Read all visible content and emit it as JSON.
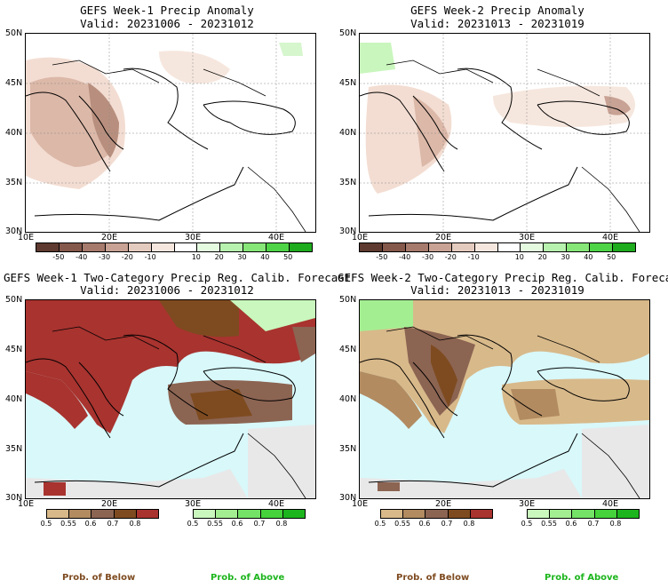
{
  "panels": {
    "p1": {
      "title": "GEFS Week-1 Precip Anomaly",
      "valid": "Valid: 20231006 - 20231012"
    },
    "p2": {
      "title": "GEFS Week-2 Precip Anomaly",
      "valid": "Valid: 20231013 - 20231019"
    },
    "p3": {
      "title": "GEFS Week-1 Two-Category Precip Reg. Calib. Forecast",
      "valid": "Valid: 20231006 - 20231012"
    },
    "p4": {
      "title": "GEFS Week-2 Two-Category Precip Reg. Calib. Forecast",
      "valid": "Valid: 20231013 - 20231019"
    }
  },
  "axes": {
    "lat_labels": [
      "50N",
      "45N",
      "40N",
      "35N",
      "30N"
    ],
    "lon_labels": [
      "10E",
      "20E",
      "30E",
      "40E"
    ]
  },
  "anomaly_colorbar": {
    "labels": [
      "-50",
      "-40",
      "-30",
      "-20",
      "-10",
      "10",
      "20",
      "30",
      "40",
      "50"
    ],
    "colors": [
      "#5e3a30",
      "#85584c",
      "#a67a6c",
      "#c8a294",
      "#e4cbbf",
      "#f6e7de",
      "#ffffff",
      "#e4fbe0",
      "#b7f3ae",
      "#86e678",
      "#4fd447",
      "#1eab1e"
    ]
  },
  "below_colorbar": {
    "labels": [
      "0.5",
      "0.55",
      "0.6",
      "0.7",
      "0.8"
    ],
    "colors": [
      "#d8b98a",
      "#b28b61",
      "#8c6452",
      "#7e4b20",
      "#a8332f"
    ]
  },
  "above_colorbar": {
    "labels": [
      "0.5",
      "0.55",
      "0.6",
      "0.7",
      "0.8"
    ],
    "colors": [
      "#c9f7bd",
      "#a4ee92",
      "#74e266",
      "#45d23a",
      "#1db51d"
    ]
  },
  "footer": {
    "below": "Prob. of Below",
    "above": "Prob. of Above"
  },
  "colors": {
    "sea": "#d8f8fa",
    "land_missing": "#e8e8e8",
    "coast": "#000000"
  }
}
